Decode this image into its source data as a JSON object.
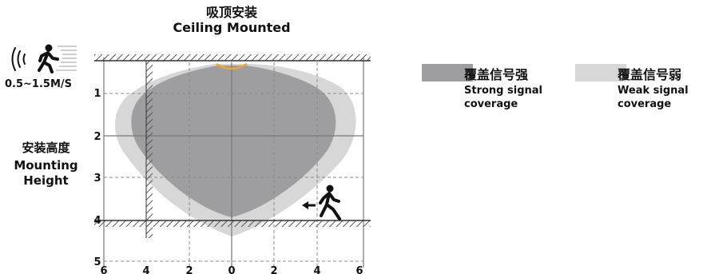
{
  "title": {
    "cn": "吸顶安装",
    "en": "Ceiling Mounted"
  },
  "speed_label": "0.5~1.5M/S",
  "mounting_height": {
    "cn": "安装高度",
    "en_line1": "Mounting",
    "en_line2": "Height"
  },
  "legend": [
    {
      "cn": "覆盖信号强",
      "en_line1": "Strong signal",
      "en_line2": "coverage",
      "color": "#9e9ea0"
    },
    {
      "cn": "覆盖信号弱",
      "en_line1": "Weak signal",
      "en_line2": "coverage",
      "color": "#d7d7d7"
    }
  ],
  "axes": {
    "y_ticks": [
      "1",
      "2",
      "3",
      "4",
      "5"
    ],
    "x_ticks": [
      "6",
      "4",
      "2",
      "0",
      "2",
      "4",
      "6"
    ]
  },
  "icons": [
    "walking-person-icon",
    "signal-wave-icon",
    "arrow-left-icon"
  ],
  "colors": {
    "strong": "#9e9ea0",
    "weak": "#d7d7d7",
    "sensor": "#f5a623",
    "grid": "#888888"
  }
}
